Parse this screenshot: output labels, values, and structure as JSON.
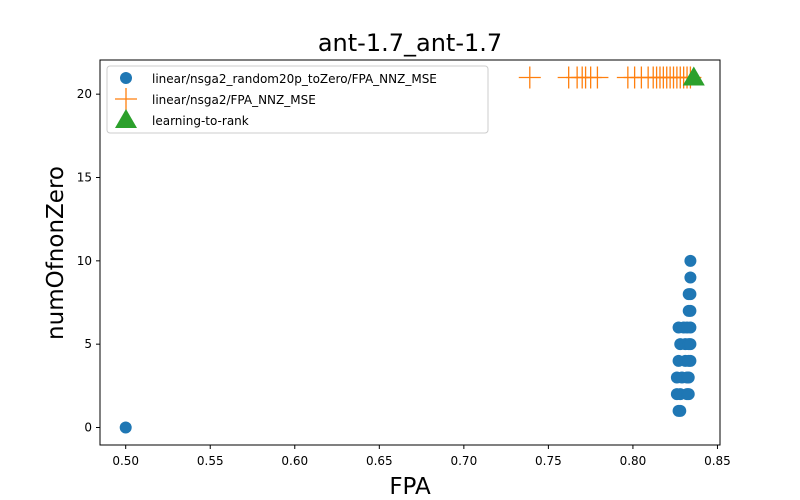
{
  "chart_data": {
    "type": "scatter",
    "title": "ant-1.7_ant-1.7",
    "xlabel": "FPA",
    "ylabel": "numOfnonZero",
    "xlim": [
      0.4848,
      0.8515
    ],
    "ylim": [
      -1.05,
      22.05
    ],
    "xticks": [
      0.5,
      0.55,
      0.6,
      0.65,
      0.7,
      0.75,
      0.8,
      0.85
    ],
    "xtick_labels": [
      "0.50",
      "0.55",
      "0.60",
      "0.65",
      "0.70",
      "0.75",
      "0.80",
      "0.85"
    ],
    "yticks": [
      0,
      5,
      10,
      15,
      20
    ],
    "ytick_labels": [
      "0",
      "5",
      "10",
      "15",
      "20"
    ],
    "grid": false,
    "legend_position": "top-left",
    "series": [
      {
        "name": "linear/nsga2_random20p_toZero/FPA_NNZ_MSE",
        "marker": "circle",
        "color": "#1f77b4",
        "points": [
          [
            0.5,
            0
          ],
          [
            0.827,
            1
          ],
          [
            0.828,
            1
          ],
          [
            0.826,
            2
          ],
          [
            0.828,
            2
          ],
          [
            0.832,
            2
          ],
          [
            0.833,
            2
          ],
          [
            0.826,
            3
          ],
          [
            0.829,
            3
          ],
          [
            0.832,
            3
          ],
          [
            0.833,
            3
          ],
          [
            0.827,
            4
          ],
          [
            0.831,
            4
          ],
          [
            0.833,
            4
          ],
          [
            0.834,
            4
          ],
          [
            0.828,
            5
          ],
          [
            0.831,
            5
          ],
          [
            0.833,
            5
          ],
          [
            0.834,
            5
          ],
          [
            0.827,
            6
          ],
          [
            0.83,
            6
          ],
          [
            0.832,
            6
          ],
          [
            0.834,
            6
          ],
          [
            0.833,
            7
          ],
          [
            0.834,
            7
          ],
          [
            0.833,
            8
          ],
          [
            0.834,
            8
          ],
          [
            0.834,
            9
          ],
          [
            0.834,
            10
          ]
        ]
      },
      {
        "name": "linear/nsga2/FPA_NNZ_MSE",
        "marker": "plus",
        "color": "#ff7f0e",
        "points": [
          [
            0.739,
            21
          ],
          [
            0.762,
            21
          ],
          [
            0.767,
            21
          ],
          [
            0.77,
            21
          ],
          [
            0.772,
            21
          ],
          [
            0.775,
            21
          ],
          [
            0.779,
            21
          ],
          [
            0.797,
            21
          ],
          [
            0.801,
            21
          ],
          [
            0.805,
            21
          ],
          [
            0.809,
            21
          ],
          [
            0.812,
            21
          ],
          [
            0.814,
            21
          ],
          [
            0.816,
            21
          ],
          [
            0.818,
            21
          ],
          [
            0.82,
            21
          ],
          [
            0.822,
            21
          ],
          [
            0.824,
            21
          ],
          [
            0.826,
            21
          ],
          [
            0.828,
            21
          ],
          [
            0.83,
            21
          ],
          [
            0.832,
            21
          ],
          [
            0.834,
            21
          ]
        ]
      },
      {
        "name": "learning-to-rank",
        "marker": "triangle",
        "color": "#2ca02c",
        "points": [
          [
            0.836,
            21
          ]
        ]
      }
    ]
  }
}
